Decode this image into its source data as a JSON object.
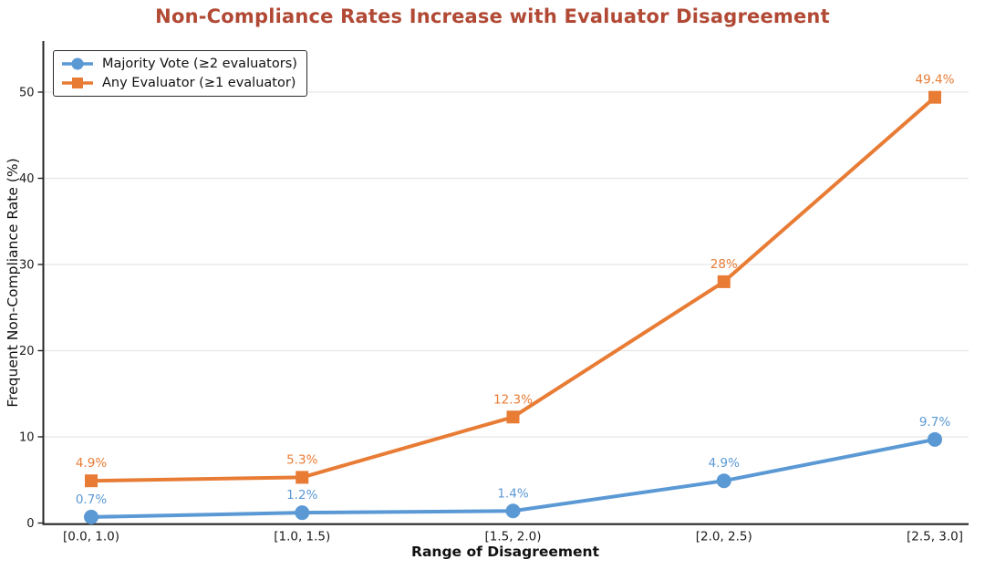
{
  "chart_data": {
    "type": "line",
    "title": "Non-Compliance Rates Increase with Evaluator Disagreement",
    "xlabel": "Range of Disagreement",
    "ylabel": "Frequent Non-Compliance Rate (%)",
    "categories": [
      "[0.0, 1.0)",
      "[1.0, 1.5)",
      "[1.5, 2.0)",
      "[2.0, 2.5)",
      "[2.5, 3.0]"
    ],
    "yticks": [
      0,
      10,
      20,
      30,
      40,
      50
    ],
    "ylim": [
      0,
      56
    ],
    "grid": "horizontal",
    "legend_position": "upper-left",
    "series": [
      {
        "name": "Majority Vote (≥2 evaluators)",
        "marker": "circle",
        "color": "#5b99d5",
        "values": [
          0.7,
          1.2,
          1.4,
          4.9,
          9.7
        ],
        "labels": [
          "0.7%",
          "1.2%",
          "1.4%",
          "4.9%",
          "9.7%"
        ]
      },
      {
        "name": "Any Evaluator (≥1 evaluator)",
        "marker": "square",
        "color": "#e87c35",
        "values": [
          4.9,
          5.3,
          12.3,
          28,
          49.4
        ],
        "labels": [
          "4.9%",
          "5.3%",
          "12.3%",
          "28%",
          "49.4%"
        ]
      }
    ],
    "colors": {
      "title": "#b14935",
      "grid": "#e7e7e7",
      "axis": "#262626",
      "tick_label": "#1a1a1a"
    }
  }
}
